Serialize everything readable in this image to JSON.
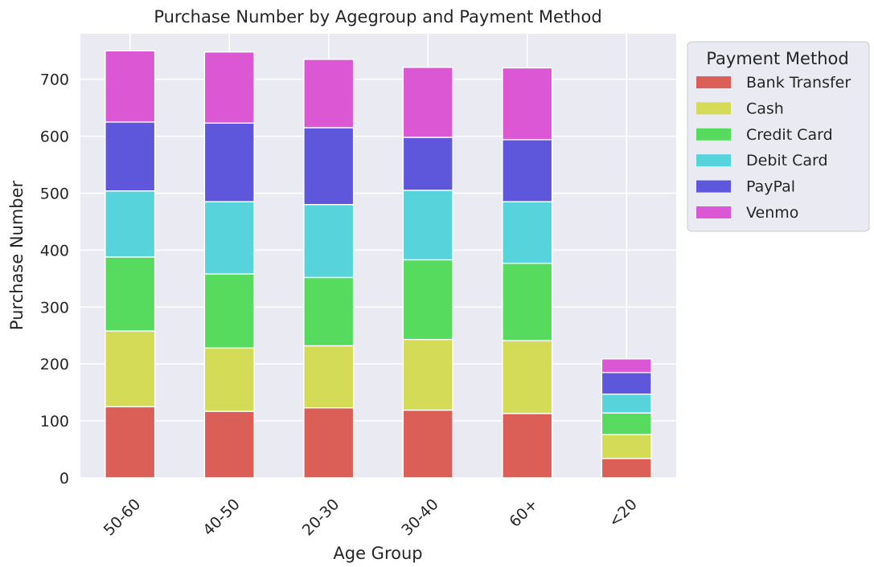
{
  "chart_data": {
    "type": "bar",
    "stacked": true,
    "title": "Purchase Number by Agegroup and Payment Method",
    "xlabel": "Age Group",
    "ylabel": "Purchase Number",
    "ylim": [
      0,
      780
    ],
    "yticks": [
      0,
      100,
      200,
      300,
      400,
      500,
      600,
      700
    ],
    "grid": true,
    "categories": [
      "50-60",
      "40-50",
      "20-30",
      "30-40",
      "60+",
      "<20"
    ],
    "legend": {
      "title": "Payment Method",
      "placement": "upper right outside plot"
    },
    "series": [
      {
        "name": "Bank Transfer",
        "color": "#db5f57",
        "values": [
          125,
          117,
          123,
          119,
          113,
          34
        ]
      },
      {
        "name": "Cash",
        "color": "#d3db57",
        "values": [
          133,
          111,
          109,
          124,
          128,
          42
        ]
      },
      {
        "name": "Credit Card",
        "color": "#57db5f",
        "values": [
          130,
          130,
          120,
          140,
          136,
          38
        ]
      },
      {
        "name": "Debit Card",
        "color": "#57d3db",
        "values": [
          116,
          127,
          128,
          122,
          108,
          33
        ]
      },
      {
        "name": "PayPal",
        "color": "#5f57db",
        "values": [
          121,
          138,
          135,
          93,
          109,
          38
        ]
      },
      {
        "name": "Venmo",
        "color": "#db57d3",
        "values": [
          125,
          125,
          120,
          123,
          126,
          24
        ]
      }
    ]
  }
}
